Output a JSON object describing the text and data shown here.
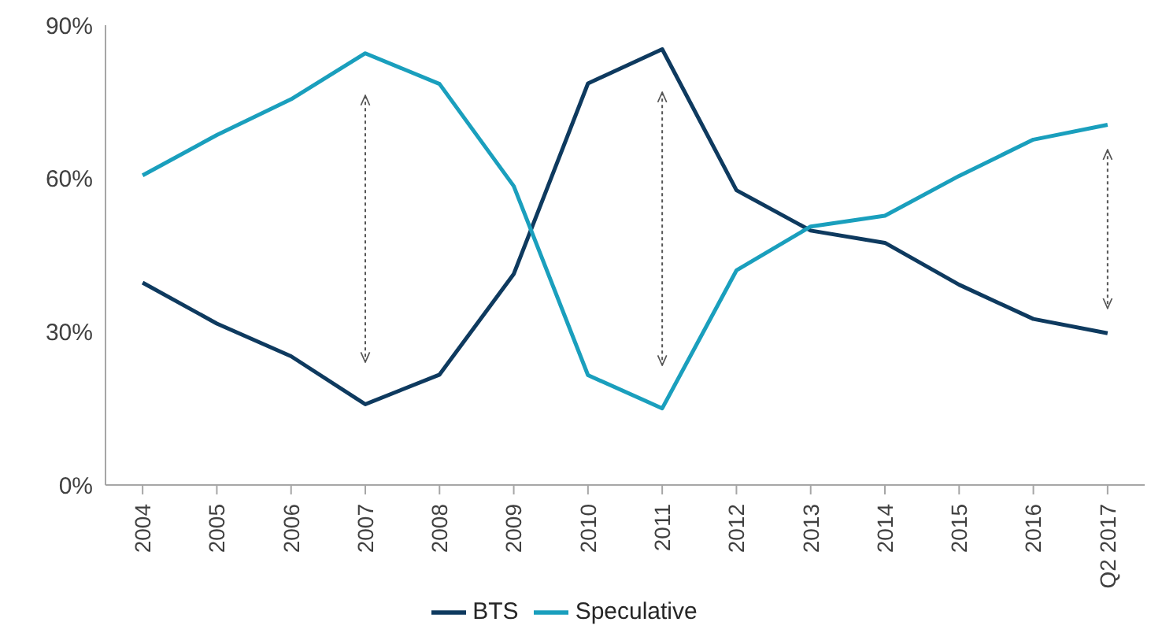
{
  "chart_data": {
    "type": "line",
    "categories": [
      "2004",
      "2005",
      "2006",
      "2007",
      "2008",
      "2009",
      "2010",
      "2011",
      "2012",
      "2013",
      "2014",
      "2015",
      "2016",
      "Q2 2017"
    ],
    "series": [
      {
        "name": "BTS",
        "color": "#0e3a5f",
        "values": [
          39.6,
          31.6,
          25.2,
          15.8,
          21.6,
          41.3,
          78.6,
          85.3,
          57.7,
          49.8,
          47.4,
          39.2,
          32.5,
          29.7
        ]
      },
      {
        "name": "Speculative",
        "color": "#1a9fbd",
        "values": [
          60.6,
          68.5,
          75.5,
          84.5,
          78.5,
          58.5,
          21.5,
          15,
          42,
          50.6,
          52.7,
          60.5,
          67.6,
          70.5
        ]
      }
    ],
    "ylim": [
      0,
      90
    ],
    "yticks": [
      {
        "value": 0,
        "label": "0%"
      },
      {
        "value": 30,
        "label": "30%"
      },
      {
        "value": 60,
        "label": "60%"
      },
      {
        "value": 90,
        "label": "90%"
      }
    ],
    "grid": false,
    "legend": "bottom",
    "marker": "none",
    "line_style": "solid"
  }
}
